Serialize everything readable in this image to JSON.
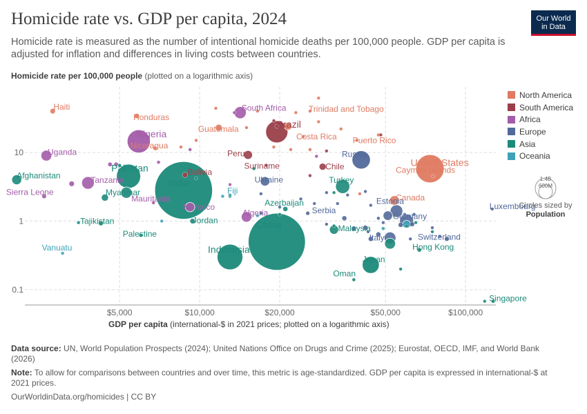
{
  "title": "Homicide rate vs. GDP per capita, 2024",
  "subtitle": "Homicide rate is measured as the number of intentional homicide deaths per 100,000 people. GDP per capita is adjusted for inflation and differences in living costs between countries.",
  "logo": {
    "line1": "Our World",
    "line2": "in Data"
  },
  "y_axis_label": "Homicide rate per 100,000 people",
  "y_axis_note": "(plotted on a logarithmic axis)",
  "x_axis_label": "GDP per capita",
  "x_axis_note": "(international-$ in 2021 prices; plotted on a logarithmic axis)",
  "size_legend": {
    "large": "1.4B",
    "small": "600M",
    "caption": "Circles sized by",
    "variable": "Population"
  },
  "footer": {
    "source_label": "Data source:",
    "source_text": "UN, World Population Prospects (2024); United Nations Office on Drugs and Crime (2025); Eurostat, OECD, IMF, and World Bank (2026)",
    "note_label": "Note:",
    "note_text": "To allow for comparisons between countries and over time, this metric is age-standardized. GDP per capita is expressed in international-$ at 2021 prices.",
    "url": "OurWorldinData.org/homicides | CC BY"
  },
  "chart_data": {
    "type": "scatter",
    "x_scale": "log",
    "y_scale": "log",
    "xlim": [
      2200,
      130000
    ],
    "ylim": [
      0.06,
      90
    ],
    "x_ticks": [
      {
        "value": 5000,
        "label": "$5,000"
      },
      {
        "value": 10000,
        "label": "$10,000"
      },
      {
        "value": 20000,
        "label": "$20,000"
      },
      {
        "value": 50000,
        "label": "$50,000"
      },
      {
        "value": 100000,
        "label": "$100,000"
      }
    ],
    "y_ticks": [
      {
        "value": 0.1,
        "label": "0.1"
      },
      {
        "value": 1,
        "label": "1"
      },
      {
        "value": 10,
        "label": "10"
      }
    ],
    "grid": true,
    "legend_position": "right",
    "regions": [
      {
        "name": "North America",
        "color": "#e07a61"
      },
      {
        "name": "South America",
        "color": "#9a3f4a"
      },
      {
        "name": "Africa",
        "color": "#a35ca9"
      },
      {
        "name": "Europe",
        "color": "#52699a"
      },
      {
        "name": "Asia",
        "color": "#1c8a7a"
      },
      {
        "name": "Oceania",
        "color": "#3fa3b8"
      }
    ],
    "points": [
      {
        "label": "Haiti",
        "region": "North America",
        "x": 2800,
        "y": 40,
        "pop": 11.8
      },
      {
        "label": "Honduras",
        "region": "North America",
        "x": 5800,
        "y": 34,
        "pop": 10.6
      },
      {
        "label": "Guatemala",
        "region": "North America",
        "x": 11800,
        "y": 23,
        "pop": 18
      },
      {
        "label": "Nicaragua",
        "region": "North America",
        "x": 6800,
        "y": 11.5,
        "pop": 7
      },
      {
        "label": "Trinidad and Tobago",
        "region": "North America",
        "x": 26000,
        "y": 40,
        "pop": 1.5
      },
      {
        "label": "Costa Rica",
        "region": "North America",
        "x": 24500,
        "y": 17,
        "pop": 5.2
      },
      {
        "label": "Puerto Rico",
        "region": "North America",
        "x": 39000,
        "y": 15,
        "pop": 3.2
      },
      {
        "label": "United States",
        "region": "North America",
        "x": 73500,
        "y": 5.8,
        "pop": 345
      },
      {
        "label": "Cayman Islands",
        "region": "North America",
        "x": 75500,
        "y": 4.5,
        "pop": 0.07
      },
      {
        "label": "Canada",
        "region": "North America",
        "x": 54000,
        "y": 2,
        "pop": 39
      },
      {
        "label": "",
        "region": "North America",
        "x": 21500,
        "y": 24,
        "pop": 25
      },
      {
        "label": "",
        "region": "North America",
        "x": 11500,
        "y": 44,
        "pop": 1
      },
      {
        "label": "",
        "region": "North America",
        "x": 16500,
        "y": 40,
        "pop": 1
      },
      {
        "label": "",
        "region": "North America",
        "x": 23000,
        "y": 38,
        "pop": 1
      },
      {
        "label": "",
        "region": "North America",
        "x": 28000,
        "y": 62,
        "pop": 0.5
      },
      {
        "label": "",
        "region": "North America",
        "x": 28000,
        "y": 28,
        "pop": 0.5
      },
      {
        "label": "",
        "region": "North America",
        "x": 34000,
        "y": 22,
        "pop": 0.5
      },
      {
        "label": "",
        "region": "North America",
        "x": 47000,
        "y": 18,
        "pop": 0.5
      },
      {
        "label": "",
        "region": "North America",
        "x": 15000,
        "y": 23,
        "pop": 1
      },
      {
        "label": "",
        "region": "North America",
        "x": 8500,
        "y": 12,
        "pop": 1
      },
      {
        "label": "",
        "region": "North America",
        "x": 9700,
        "y": 15,
        "pop": 1
      },
      {
        "label": "",
        "region": "North America",
        "x": 22000,
        "y": 11,
        "pop": 1
      },
      {
        "label": "",
        "region": "North America",
        "x": 19000,
        "y": 12,
        "pop": 1
      },
      {
        "label": "",
        "region": "North America",
        "x": 26000,
        "y": 11,
        "pop": 0.5
      },
      {
        "label": "",
        "region": "North America",
        "x": 40000,
        "y": 2.5,
        "pop": 0.3
      },
      {
        "label": "Brazil",
        "region": "South America",
        "x": 19500,
        "y": 20,
        "pop": 212
      },
      {
        "label": "Peru",
        "region": "South America",
        "x": 15200,
        "y": 9.2,
        "pop": 34
      },
      {
        "label": "Bolivia",
        "region": "South America",
        "x": 8800,
        "y": 4.7,
        "pop": 12
      },
      {
        "label": "Suriname",
        "region": "South America",
        "x": 17800,
        "y": 6.5,
        "pop": 0.6
      },
      {
        "label": "Chile",
        "region": "South America",
        "x": 29000,
        "y": 6.2,
        "pop": 19.8
      },
      {
        "label": "",
        "region": "South America",
        "x": 26000,
        "y": 4.6,
        "pop": 3.4
      },
      {
        "label": "",
        "region": "South America",
        "x": 19500,
        "y": 24,
        "pop": 7
      },
      {
        "label": "",
        "region": "South America",
        "x": 30000,
        "y": 10.5,
        "pop": 4
      },
      {
        "label": "",
        "region": "South America",
        "x": 19000,
        "y": 29,
        "pop": 0.8
      },
      {
        "label": "",
        "region": "South America",
        "x": 48000,
        "y": 18,
        "pop": 0.4
      },
      {
        "label": "South Africa",
        "region": "Africa",
        "x": 14200,
        "y": 38,
        "pop": 63
      },
      {
        "label": "Nigeria",
        "region": "Africa",
        "x": 5900,
        "y": 14.5,
        "pop": 232
      },
      {
        "label": "Uganda",
        "region": "Africa",
        "x": 2650,
        "y": 9,
        "pop": 50
      },
      {
        "label": "Tanzania",
        "region": "Africa",
        "x": 3800,
        "y": 3.6,
        "pop": 68
      },
      {
        "label": "Sierra Leone",
        "region": "Africa",
        "x": 2600,
        "y": 2.3,
        "pop": 8.6
      },
      {
        "label": "Mauritania",
        "region": "Africa",
        "x": 6700,
        "y": 1.85,
        "pop": 5
      },
      {
        "label": "Morocco",
        "region": "Africa",
        "x": 9200,
        "y": 1.6,
        "pop": 38
      },
      {
        "label": "Algeria",
        "region": "Africa",
        "x": 15000,
        "y": 1.15,
        "pop": 46.8
      },
      {
        "label": "",
        "region": "Africa",
        "x": 13500,
        "y": 38,
        "pop": 2
      },
      {
        "label": "",
        "region": "Africa",
        "x": 9200,
        "y": 11,
        "pop": 5
      },
      {
        "label": "",
        "region": "Africa",
        "x": 4600,
        "y": 6.7,
        "pop": 8
      },
      {
        "label": "",
        "region": "Africa",
        "x": 4850,
        "y": 6.7,
        "pop": 8
      },
      {
        "label": "",
        "region": "Africa",
        "x": 3300,
        "y": 3.5,
        "pop": 12
      },
      {
        "label": "",
        "region": "Africa",
        "x": 13000,
        "y": 3.4,
        "pop": 2
      },
      {
        "label": "",
        "region": "Africa",
        "x": 27500,
        "y": 8.8,
        "pop": 1
      },
      {
        "label": "",
        "region": "Africa",
        "x": 7000,
        "y": 7.2,
        "pop": 5
      },
      {
        "label": "Russia",
        "region": "Europe",
        "x": 40500,
        "y": 7.8,
        "pop": 145
      },
      {
        "label": "Ukraine",
        "region": "Europe",
        "x": 17600,
        "y": 3.8,
        "pop": 38
      },
      {
        "label": "Serbia",
        "region": "Europe",
        "x": 25500,
        "y": 1.3,
        "pop": 6.6
      },
      {
        "label": "Estonia",
        "region": "Europe",
        "x": 44000,
        "y": 1.7,
        "pop": 1.3
      },
      {
        "label": "Luxembourg",
        "region": "Europe",
        "x": 126000,
        "y": 1.5,
        "pop": 0.66
      },
      {
        "label": "Germany",
        "region": "Europe",
        "x": 60000,
        "y": 1,
        "pop": 84
      },
      {
        "label": "Italy",
        "region": "Europe",
        "x": 52000,
        "y": 0.57,
        "pop": 59
      },
      {
        "label": "Switzerland",
        "region": "Europe",
        "x": 85000,
        "y": 0.55,
        "pop": 8.9
      },
      {
        "label": "",
        "region": "Europe",
        "x": 20000,
        "y": 1.6,
        "pop": 3
      },
      {
        "label": "",
        "region": "Europe",
        "x": 24000,
        "y": 2.1,
        "pop": 3
      },
      {
        "label": "",
        "region": "Europe",
        "x": 30000,
        "y": 2.6,
        "pop": 4
      },
      {
        "label": "",
        "region": "Europe",
        "x": 33000,
        "y": 1.8,
        "pop": 2
      },
      {
        "label": "",
        "region": "Europe",
        "x": 35000,
        "y": 1.1,
        "pop": 10
      },
      {
        "label": "",
        "region": "Europe",
        "x": 42000,
        "y": 0.8,
        "pop": 10
      },
      {
        "label": "",
        "region": "Europe",
        "x": 43000,
        "y": 0.7,
        "pop": 2
      },
      {
        "label": "",
        "region": "Europe",
        "x": 47000,
        "y": 1.1,
        "pop": 5
      },
      {
        "label": "",
        "region": "Europe",
        "x": 47000,
        "y": 0.64,
        "pop": 10
      },
      {
        "label": "",
        "region": "Europe",
        "x": 49000,
        "y": 0.95,
        "pop": 2
      },
      {
        "label": "",
        "region": "Europe",
        "x": 51000,
        "y": 1.2,
        "pop": 38
      },
      {
        "label": "",
        "region": "Europe",
        "x": 55000,
        "y": 1.4,
        "pop": 68
      },
      {
        "label": "",
        "region": "Europe",
        "x": 57000,
        "y": 0.88,
        "pop": 10
      },
      {
        "label": "",
        "region": "Europe",
        "x": 59000,
        "y": 1.25,
        "pop": 2
      },
      {
        "label": "",
        "region": "Europe",
        "x": 63000,
        "y": 0.9,
        "pop": 9
      },
      {
        "label": "",
        "region": "Europe",
        "x": 64000,
        "y": 1.25,
        "pop": 5
      },
      {
        "label": "",
        "region": "Europe",
        "x": 62000,
        "y": 0.55,
        "pop": 1
      },
      {
        "label": "",
        "region": "Europe",
        "x": 75000,
        "y": 0.8,
        "pop": 2
      },
      {
        "label": "",
        "region": "Europe",
        "x": 80000,
        "y": 0.6,
        "pop": 5
      },
      {
        "label": "",
        "region": "Europe",
        "x": 44000,
        "y": 0.55,
        "pop": 10
      },
      {
        "label": "",
        "region": "Europe",
        "x": 38000,
        "y": 0.78,
        "pop": 10
      },
      {
        "label": "",
        "region": "Europe",
        "x": 30000,
        "y": 0.9,
        "pop": 2
      },
      {
        "label": "",
        "region": "Europe",
        "x": 42000,
        "y": 2.7,
        "pop": 3
      },
      {
        "label": "",
        "region": "Europe",
        "x": 36000,
        "y": 2.4,
        "pop": 2
      },
      {
        "label": "",
        "region": "Europe",
        "x": 17000,
        "y": 2.5,
        "pop": 2
      },
      {
        "label": "",
        "region": "Europe",
        "x": 27000,
        "y": 1.8,
        "pop": 2
      },
      {
        "label": "India",
        "region": "Asia",
        "x": 8700,
        "y": 2.8,
        "pop": 1440
      },
      {
        "label": "Indonesia",
        "region": "Asia",
        "x": 13000,
        "y": 0.3,
        "pop": 283
      },
      {
        "label": "China",
        "region": "Asia",
        "x": 19500,
        "y": 0.5,
        "pop": 1410
      },
      {
        "label": "Pakistan",
        "region": "Asia",
        "x": 5400,
        "y": 4.5,
        "pop": 251
      },
      {
        "label": "Afghanistan",
        "region": "Asia",
        "x": 2050,
        "y": 4,
        "pop": 42
      },
      {
        "label": "Myanmar",
        "region": "Asia",
        "x": 5300,
        "y": 2.6,
        "pop": 54
      },
      {
        "label": "Tajikistan",
        "region": "Asia",
        "x": 4250,
        "y": 0.93,
        "pop": 10
      },
      {
        "label": "Palestine",
        "region": "Asia",
        "x": 6000,
        "y": 0.62,
        "pop": 5.3
      },
      {
        "label": "Jordan",
        "region": "Asia",
        "x": 9400,
        "y": 1,
        "pop": 11.5
      },
      {
        "label": "Turkey",
        "region": "Asia",
        "x": 34500,
        "y": 3.2,
        "pop": 87
      },
      {
        "label": "Azerbaijan",
        "region": "Asia",
        "x": 21000,
        "y": 1.5,
        "pop": 10.2
      },
      {
        "label": "Malaysia",
        "region": "Asia",
        "x": 32000,
        "y": 0.75,
        "pop": 35.5
      },
      {
        "label": "Hong Kong",
        "region": "Asia",
        "x": 67000,
        "y": 0.38,
        "pop": 7.4
      },
      {
        "label": "Japan",
        "region": "Asia",
        "x": 44000,
        "y": 0.23,
        "pop": 124
      },
      {
        "label": "Oman",
        "region": "Asia",
        "x": 38000,
        "y": 0.14,
        "pop": 5.3
      },
      {
        "label": "Singapore",
        "region": "Asia",
        "x": 127000,
        "y": 0.068,
        "pop": 5.9
      },
      {
        "label": "",
        "region": "Asia",
        "x": 4400,
        "y": 2.2,
        "pop": 20
      },
      {
        "label": "",
        "region": "Asia",
        "x": 3500,
        "y": 0.95,
        "pop": 3
      },
      {
        "label": "",
        "region": "Asia",
        "x": 9700,
        "y": 4.2,
        "pop": 5
      },
      {
        "label": "",
        "region": "Asia",
        "x": 16000,
        "y": 5.8,
        "pop": 3
      },
      {
        "label": "",
        "region": "Asia",
        "x": 13000,
        "y": 2.3,
        "pop": 3
      },
      {
        "label": "",
        "region": "Asia",
        "x": 20000,
        "y": 1.25,
        "pop": 2
      },
      {
        "label": "",
        "region": "Asia",
        "x": 32000,
        "y": 2.6,
        "pop": 3
      },
      {
        "label": "",
        "region": "Asia",
        "x": 52000,
        "y": 0.47,
        "pop": 51
      },
      {
        "label": "",
        "region": "Asia",
        "x": 57000,
        "y": 0.2,
        "pop": 2
      },
      {
        "label": "",
        "region": "Asia",
        "x": 65000,
        "y": 0.95,
        "pop": 3
      },
      {
        "label": "",
        "region": "Asia",
        "x": 75000,
        "y": 0.7,
        "pop": 3
      },
      {
        "label": "",
        "region": "Asia",
        "x": 118000,
        "y": 0.068,
        "pop": 2
      },
      {
        "label": "",
        "region": "Asia",
        "x": 60000,
        "y": 0.85,
        "pop": 2
      },
      {
        "label": "",
        "region": "Asia",
        "x": 17000,
        "y": 1.3,
        "pop": 3
      },
      {
        "label": "",
        "region": "Asia",
        "x": 32000,
        "y": 0.85,
        "pop": 5
      },
      {
        "label": "",
        "region": "Asia",
        "x": 5000,
        "y": 6.5,
        "pop": 5
      },
      {
        "label": "Fiji",
        "region": "Oceania",
        "x": 13000,
        "y": 2.4,
        "pop": 0.93
      },
      {
        "label": "Vanuatu",
        "region": "Oceania",
        "x": 3050,
        "y": 0.34,
        "pop": 0.33
      },
      {
        "label": "",
        "region": "Oceania",
        "x": 12200,
        "y": 2.3,
        "pop": 0.8
      },
      {
        "label": "",
        "region": "Oceania",
        "x": 16500,
        "y": 1.2,
        "pop": 0.8
      },
      {
        "label": "",
        "region": "Oceania",
        "x": 7200,
        "y": 1,
        "pop": 0.8
      },
      {
        "label": "",
        "region": "Oceania",
        "x": 60000,
        "y": 0.9,
        "pop": 27
      },
      {
        "label": "",
        "region": "Oceania",
        "x": 49000,
        "y": 0.78,
        "pop": 5.3
      }
    ]
  }
}
